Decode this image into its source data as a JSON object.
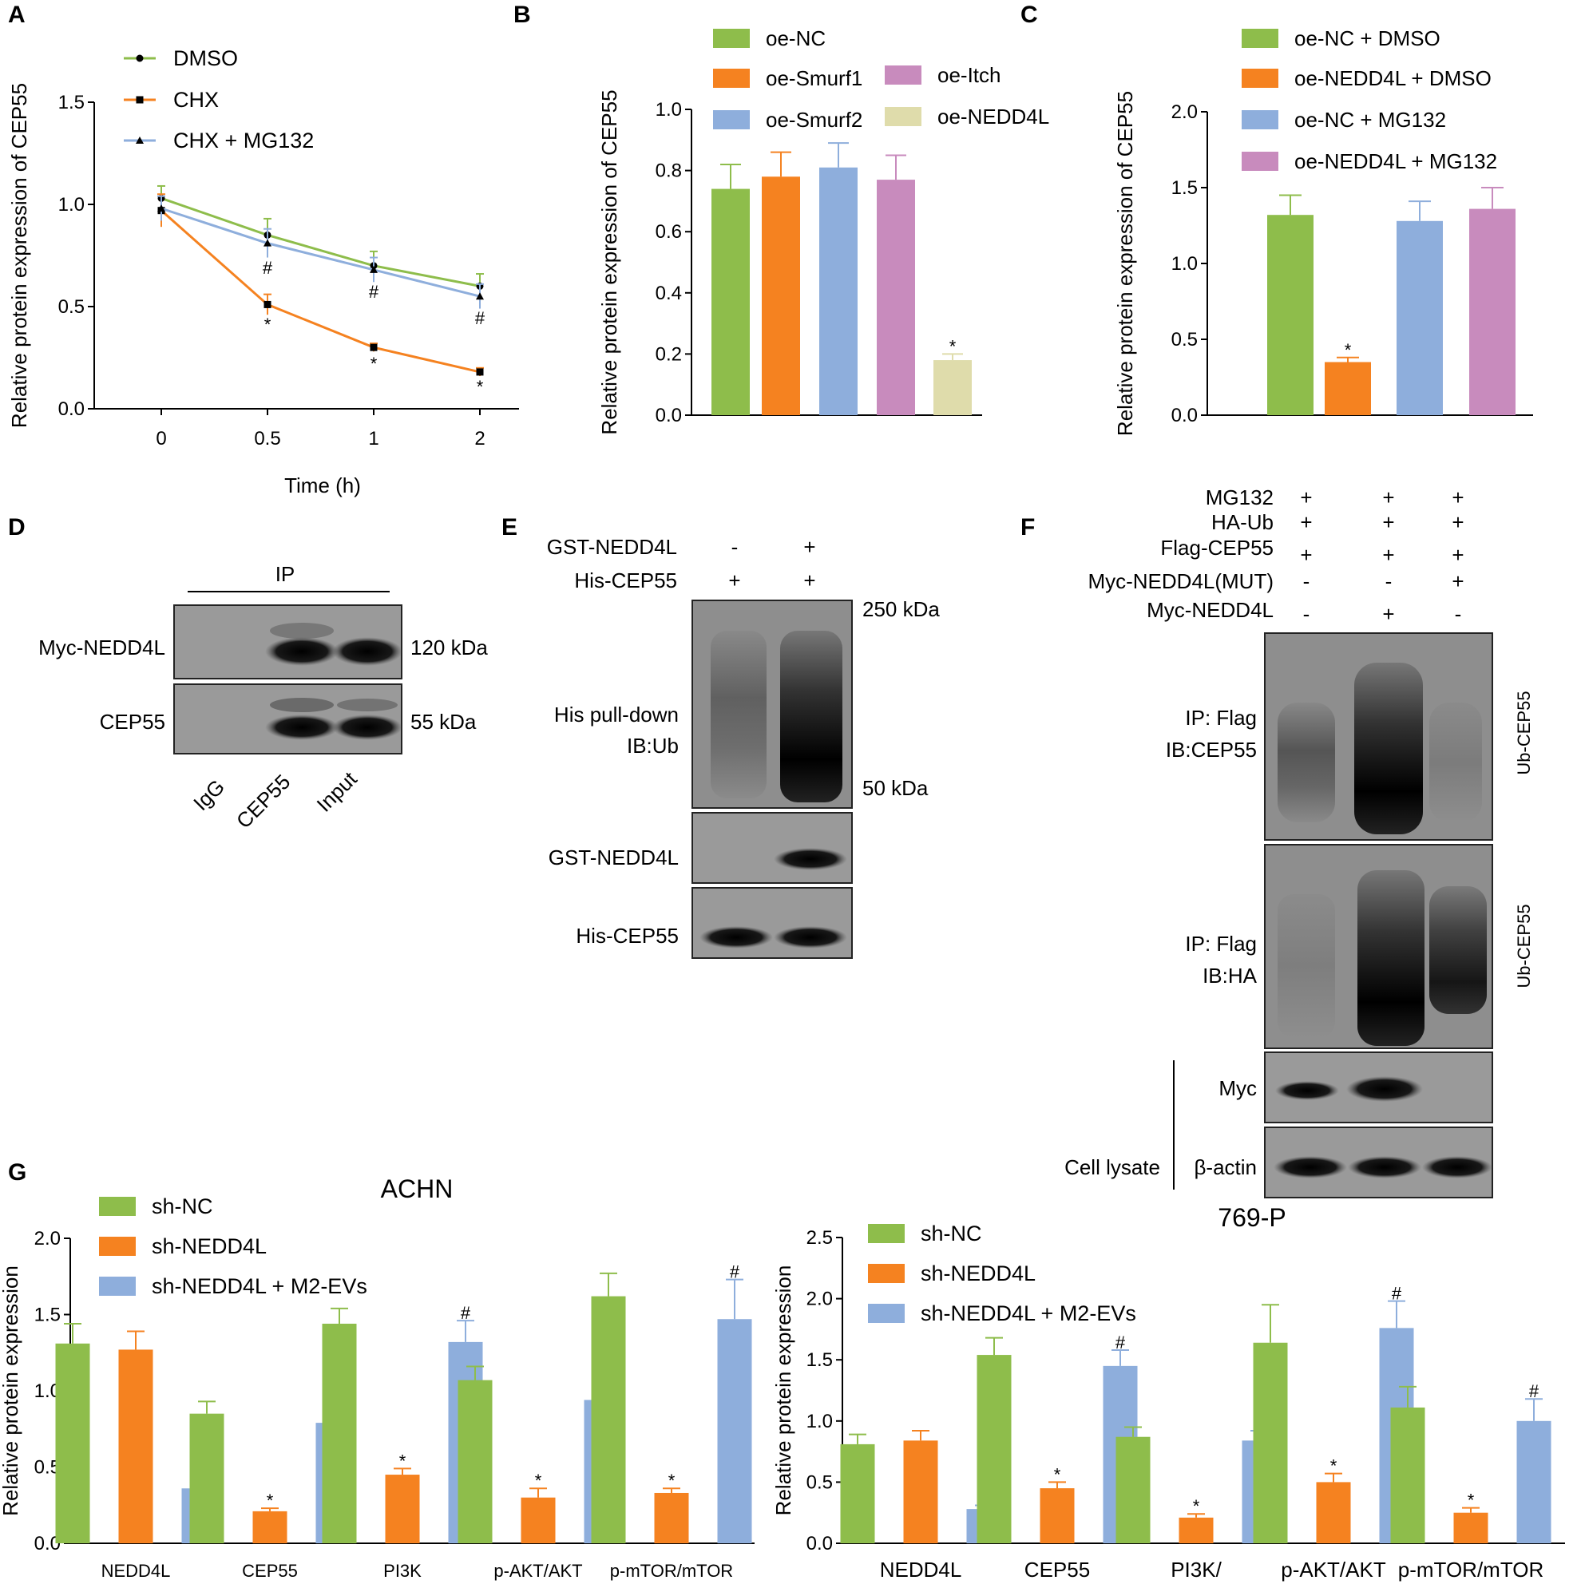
{
  "colors": {
    "green": "#8ebd4b",
    "orange": "#f58220",
    "blue": "#8eaedc",
    "pink": "#c88bbd",
    "khaki": "#dfdcab",
    "axis": "#000000"
  },
  "chart_data": [
    {
      "panel": "A",
      "type": "line",
      "xlabel": "Time (h)",
      "ylabel": "Relative protein expression of CEP55",
      "ylim": [
        0,
        1.5
      ],
      "yticks": [
        "0.0",
        "0.5",
        "1.0",
        "1.5"
      ],
      "categories": [
        "0",
        "0.5",
        "1",
        "2"
      ],
      "series": [
        {
          "name": "DMSO",
          "color": "#8ebd4b",
          "marker": "circle",
          "values": [
            1.03,
            0.85,
            0.7,
            0.6
          ],
          "errors": [
            0.06,
            0.08,
            0.07,
            0.06
          ]
        },
        {
          "name": "CHX",
          "color": "#f58220",
          "marker": "square",
          "values": [
            0.97,
            0.51,
            0.3,
            0.18
          ],
          "errors": [
            0.08,
            0.05,
            0.02,
            0.02
          ]
        },
        {
          "name": "CHX + MG132",
          "color": "#8eaedc",
          "marker": "triangle",
          "values": [
            0.98,
            0.81,
            0.68,
            0.55
          ],
          "errors": [
            0.06,
            0.07,
            0.06,
            0.06
          ]
        }
      ],
      "annotations": [
        {
          "x_index": 1,
          "text": "#"
        },
        {
          "x_index": 2,
          "text": "#"
        },
        {
          "x_index": 3,
          "text": "#"
        },
        {
          "x_index": 1,
          "text": "*"
        },
        {
          "x_index": 2,
          "text": "*"
        },
        {
          "x_index": 3,
          "text": "*"
        }
      ]
    },
    {
      "panel": "B",
      "type": "bar",
      "ylabel": "Relative protein expression of CEP55",
      "ylim": [
        0,
        1.0
      ],
      "yticks": [
        "0.0",
        "0.2",
        "0.4",
        "0.6",
        "0.8",
        "1.0"
      ],
      "categories": [
        "oe-NC",
        "oe-Smurf1",
        "oe-Smurf2",
        "oe-Itch",
        "oe-NEDD4L"
      ],
      "values": [
        0.74,
        0.78,
        0.81,
        0.77,
        0.18
      ],
      "errors": [
        0.08,
        0.08,
        0.08,
        0.08,
        0.02
      ],
      "bar_colors": [
        "#8ebd4b",
        "#f58220",
        "#8eaedc",
        "#c88bbd",
        "#dfdcab"
      ],
      "marks": [
        "",
        "",
        "",
        "",
        "*"
      ]
    },
    {
      "panel": "C",
      "type": "bar",
      "ylabel": "Relative protein expression of CEP55",
      "ylim": [
        0,
        2.0
      ],
      "yticks": [
        "0.0",
        "0.5",
        "1.0",
        "1.5",
        "2.0"
      ],
      "categories": [
        "oe-NC + DMSO",
        "oe-NEDD4L + DMSO",
        "oe-NC + MG132",
        "oe-NEDD4L + MG132"
      ],
      "values": [
        1.32,
        0.35,
        1.28,
        1.36
      ],
      "errors": [
        0.13,
        0.03,
        0.13,
        0.14
      ],
      "bar_colors": [
        "#8ebd4b",
        "#f58220",
        "#8eaedc",
        "#c88bbd"
      ],
      "marks": [
        "",
        "*",
        "",
        ""
      ]
    },
    {
      "panel": "G-left",
      "type": "bar",
      "title": "ACHN",
      "ylabel": "Relative protein expression",
      "ylim": [
        0,
        2.0
      ],
      "yticks": [
        "0.0",
        "0.5",
        "1.0",
        "1.5",
        "2.0"
      ],
      "categories": [
        "NEDD4L",
        "CEP55",
        "PI3K",
        "p-AKT/AKT",
        "p-mTOR/mTOR"
      ],
      "series": [
        {
          "name": "sh-NC",
          "color": "#8ebd4b",
          "values": [
            1.31,
            0.85,
            1.44,
            1.07,
            1.62
          ],
          "errors": [
            0.13,
            0.08,
            0.1,
            0.09,
            0.15
          ],
          "marks": [
            "",
            "",
            "",
            "",
            ""
          ]
        },
        {
          "name": "sh-NEDD4L",
          "color": "#f58220",
          "values": [
            1.27,
            0.21,
            0.45,
            0.3,
            0.33
          ],
          "errors": [
            0.12,
            0.02,
            0.04,
            0.06,
            0.03
          ],
          "marks": [
            "",
            "*",
            "*",
            "*",
            "*"
          ]
        },
        {
          "name": "sh-NEDD4L + M2-EVs",
          "color": "#8eaedc",
          "values": [
            0.36,
            0.79,
            1.32,
            0.94,
            1.47
          ],
          "errors": [
            0.03,
            0.09,
            0.14,
            0.09,
            0.26
          ],
          "marks": [
            "#",
            "#",
            "#",
            "#",
            "#"
          ]
        }
      ]
    },
    {
      "panel": "G-right",
      "type": "bar",
      "title": "769-P",
      "ylabel": "Relative protein expression",
      "ylim": [
        0,
        2.5
      ],
      "yticks": [
        "0.0",
        "0.5",
        "1.0",
        "1.5",
        "2.0",
        "2.5"
      ],
      "categories": [
        "NEDD4L",
        "CEP55",
        "PI3K/",
        "p-AKT/AKT",
        "p-mTOR/mTOR"
      ],
      "series": [
        {
          "name": "sh-NC",
          "color": "#8ebd4b",
          "values": [
            0.81,
            1.54,
            0.87,
            1.64,
            1.11
          ],
          "errors": [
            0.08,
            0.14,
            0.08,
            0.31,
            0.17
          ],
          "marks": [
            "",
            "",
            "",
            "",
            ""
          ]
        },
        {
          "name": "sh-NEDD4L",
          "color": "#f58220",
          "values": [
            0.84,
            0.45,
            0.21,
            0.5,
            0.25
          ],
          "errors": [
            0.08,
            0.05,
            0.03,
            0.07,
            0.04
          ],
          "marks": [
            "",
            "*",
            "*",
            "*",
            "*"
          ]
        },
        {
          "name": "sh-NEDD4L + M2-EVs",
          "color": "#8eaedc",
          "values": [
            0.28,
            1.45,
            0.84,
            1.76,
            1.0
          ],
          "errors": [
            0.03,
            0.13,
            0.08,
            0.22,
            0.18
          ],
          "marks": [
            "#",
            "#",
            "#",
            "#",
            "#"
          ]
        }
      ]
    }
  ],
  "panel_labels": [
    "A",
    "B",
    "C",
    "D",
    "E",
    "F",
    "G"
  ],
  "blots": {
    "D": {
      "ip_label": "IP",
      "row_labels": [
        "Myc-NEDD4L",
        "CEP55"
      ],
      "size_labels": [
        "120 kDa",
        "55 kDa"
      ],
      "lane_labels": [
        "IgG",
        "CEP55",
        "Input"
      ]
    },
    "E": {
      "conditions": [
        {
          "name": "GST-NEDD4L",
          "signs": [
            "-",
            "+"
          ]
        },
        {
          "name": "His-CEP55",
          "signs": [
            "+",
            "+"
          ]
        }
      ],
      "markers": [
        "250 kDa",
        "50 kDa"
      ],
      "row_labels": [
        "His pull-down",
        "IB:Ub",
        "GST-NEDD4L",
        "His-CEP55"
      ]
    },
    "F": {
      "conditions": [
        {
          "name": "MG132",
          "signs": [
            "+",
            "+",
            "+"
          ]
        },
        {
          "name": "HA-Ub",
          "signs": [
            "+",
            "+",
            "+"
          ]
        },
        {
          "name": "Flag-CEP55",
          "signs": [
            "+",
            "+",
            "+"
          ]
        },
        {
          "name": "Myc-NEDD4L(MUT)",
          "signs": [
            "-",
            "-",
            "+"
          ]
        },
        {
          "name": "Myc-NEDD4L",
          "signs": [
            "-",
            "+",
            "-"
          ]
        }
      ],
      "row_labels": [
        "IP: Flag",
        "IB:CEP55",
        "IP: Flag",
        "IB:HA",
        "Myc",
        "β-actin",
        "Cell lysate"
      ],
      "side_labels": [
        "Ub-CEP55",
        "Ub-CEP55"
      ]
    }
  }
}
